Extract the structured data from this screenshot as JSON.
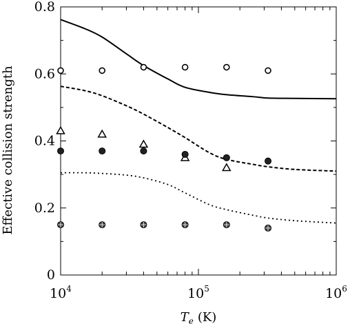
{
  "chart_data": {
    "type": "scatter",
    "xscale": "log",
    "xlim": [
      10000,
      1000000
    ],
    "ylim": [
      0,
      0.8
    ],
    "grid": false,
    "legend": "none",
    "xlabel_symbol": "T",
    "xlabel_subscript": "e",
    "xlabel_unit": "(K)",
    "ylabel": "Effective collision strength",
    "yticks": [
      {
        "value": 0,
        "label": "0"
      },
      {
        "value": 0.2,
        "label": "0.2"
      },
      {
        "value": 0.4,
        "label": "0.4"
      },
      {
        "value": 0.6,
        "label": "0.6"
      },
      {
        "value": 0.8,
        "label": "0.8"
      }
    ],
    "xticks": [
      {
        "value": 10000,
        "base": "10",
        "exp": "4"
      },
      {
        "value": 100000,
        "base": "10",
        "exp": "5"
      },
      {
        "value": 1000000,
        "base": "10",
        "exp": "6"
      }
    ],
    "lines": [
      {
        "style": "solid",
        "x": [
          10000,
          15000,
          20000,
          30000,
          40000,
          60000,
          80000,
          120000,
          160000,
          250000,
          320000,
          500000,
          1000000
        ],
        "y": [
          0.762,
          0.735,
          0.71,
          0.66,
          0.625,
          0.585,
          0.56,
          0.545,
          0.538,
          0.532,
          0.528,
          0.527,
          0.526
        ]
      },
      {
        "style": "dashed",
        "x": [
          10000,
          15000,
          20000,
          30000,
          40000,
          60000,
          80000,
          120000,
          160000,
          250000,
          320000,
          500000,
          1000000
        ],
        "y": [
          0.563,
          0.55,
          0.535,
          0.505,
          0.48,
          0.44,
          0.41,
          0.365,
          0.345,
          0.33,
          0.323,
          0.315,
          0.31
        ]
      },
      {
        "style": "dotted",
        "x": [
          10000,
          15000,
          20000,
          30000,
          40000,
          60000,
          80000,
          120000,
          160000,
          250000,
          320000,
          500000,
          1000000
        ],
        "y": [
          0.305,
          0.305,
          0.303,
          0.298,
          0.29,
          0.27,
          0.245,
          0.21,
          0.195,
          0.178,
          0.17,
          0.162,
          0.155
        ]
      }
    ],
    "points": [
      {
        "marker": "open-circle",
        "x": [
          10000,
          20000,
          40000,
          80000,
          160000,
          320000
        ],
        "y": [
          0.61,
          0.61,
          0.62,
          0.62,
          0.62,
          0.61
        ]
      },
      {
        "marker": "open-triangle",
        "x": [
          10000,
          20000,
          40000,
          80000,
          160000
        ],
        "y": [
          0.43,
          0.42,
          0.39,
          0.35,
          0.32
        ]
      },
      {
        "marker": "filled-circle",
        "x": [
          10000,
          20000,
          40000,
          80000,
          160000,
          320000
        ],
        "y": [
          0.37,
          0.37,
          0.37,
          0.36,
          0.35,
          0.34
        ]
      },
      {
        "marker": "starred-circle",
        "x": [
          10000,
          20000,
          40000,
          80000,
          160000,
          320000
        ],
        "y": [
          0.15,
          0.15,
          0.15,
          0.15,
          0.15,
          0.14
        ]
      }
    ]
  }
}
